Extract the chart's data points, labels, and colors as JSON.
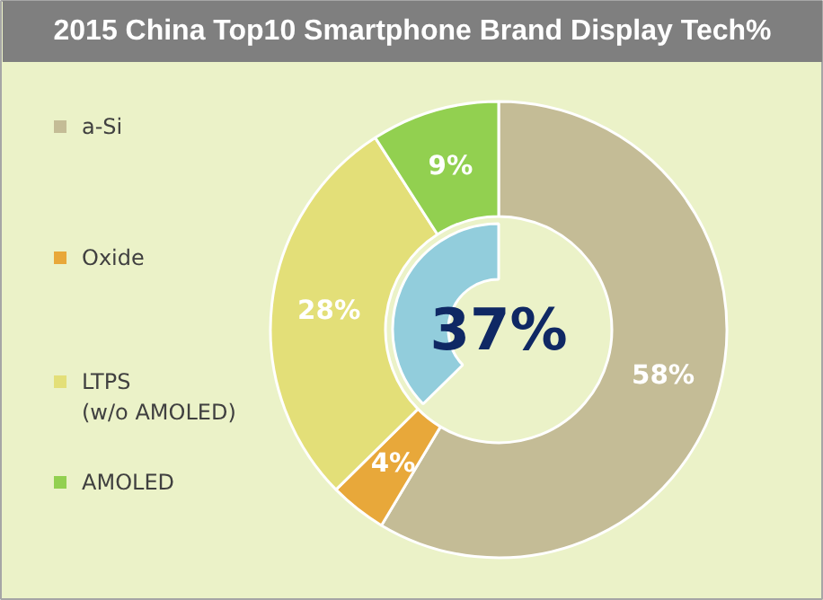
{
  "chart_data": {
    "type": "donut",
    "title": "2015 China Top10 Smartphone Brand Display Tech%",
    "categories": [
      "a-Si",
      "Oxide",
      "LTPS\n(w/o AMOLED)",
      "AMOLED"
    ],
    "series": [
      {
        "values": [
          58,
          4,
          28,
          9
        ],
        "colors": [
          "#c4bc96",
          "#e8a83a",
          "#e3df78",
          "#92d050"
        ],
        "value_labels": [
          "58%",
          "4%",
          "28%",
          "9%"
        ]
      },
      {
        "values": [
          37,
          null,
          null,
          null
        ],
        "colors": [
          "#92cddc",
          null,
          null,
          null
        ],
        "value_labels": [
          "37%",
          null,
          null,
          null
        ]
      }
    ],
    "legend": "left"
  }
}
